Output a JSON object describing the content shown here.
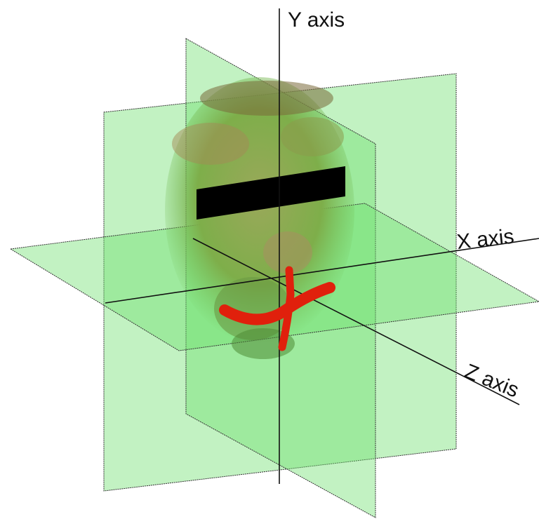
{
  "axes": {
    "y": "Y axis",
    "x": "X axis",
    "z": "Z axis"
  }
}
